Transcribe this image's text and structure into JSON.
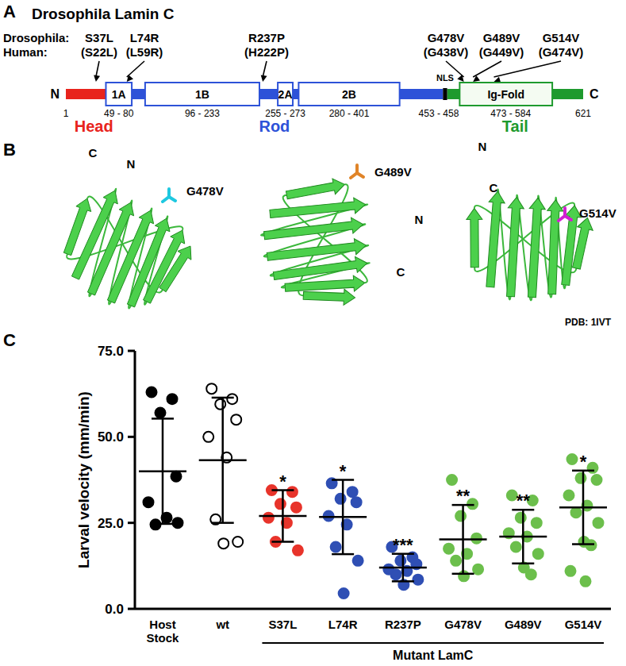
{
  "panel_a": {
    "label": "A",
    "title": "Drosophila Lamin C",
    "row_labels": [
      "Drosophila:",
      "Human:"
    ],
    "mutations": [
      {
        "drosophila": "S37L",
        "human": "(S22L)",
        "residue": 37
      },
      {
        "drosophila": "L74R",
        "human": "(L59R)",
        "residue": 74
      },
      {
        "drosophila": "R237P",
        "human": "(H222P)",
        "residue": 237
      },
      {
        "drosophila": "G478V",
        "human": "(G438V)",
        "residue": 478
      },
      {
        "drosophila": "G489V",
        "human": "(G449V)",
        "residue": 489
      },
      {
        "drosophila": "G514V",
        "human": "(G474V)",
        "residue": 514
      }
    ],
    "termini": [
      "N",
      "C"
    ],
    "start": 1,
    "end": 621,
    "boxes": [
      {
        "label": "1A",
        "range_label": "49 - 80",
        "from": 49,
        "to": 80
      },
      {
        "label": "1B",
        "range_label": "96 - 233",
        "from": 96,
        "to": 233
      },
      {
        "label": "2A",
        "range_label": "255 - 273",
        "from": 255,
        "to": 273
      },
      {
        "label": "2B",
        "range_label": "280 - 401",
        "from": 280,
        "to": 401
      }
    ],
    "nls": {
      "label": "NLS",
      "range_label": "453 - 458",
      "from": 453,
      "to": 458
    },
    "ig_fold": {
      "label": "Ig-Fold",
      "range_label": "473 - 584",
      "from": 473,
      "to": 584
    },
    "regions": [
      {
        "label": "Head",
        "color": "#e8231c"
      },
      {
        "label": "Rod",
        "color": "#2d52d8"
      },
      {
        "label": "Tail",
        "color": "#1e9a2e"
      }
    ]
  },
  "panel_b": {
    "label": "B",
    "termini": [
      "N",
      "C"
    ],
    "pdb": "PDB: 1IVT",
    "structures": [
      {
        "mutation": "G478V",
        "color": "#1ec8e0"
      },
      {
        "mutation": "G489V",
        "color": "#e08428"
      },
      {
        "mutation": "G514V",
        "color": "#d21ed2"
      }
    ]
  },
  "chart_data": {
    "type": "strip",
    "panel_label": "C",
    "y_label": "Larval velocity (mm/min)",
    "categories": [
      "Host Stock",
      "wt",
      "S37L",
      "L74R",
      "R237P",
      "G478V",
      "G489V",
      "G514V"
    ],
    "colors": [
      "#000000",
      "#ffffff",
      "#e8342b",
      "#2f4fb4",
      "#2f4fb4",
      "#6cbf4c",
      "#6cbf4c",
      "#6cbf4c"
    ],
    "values": [
      [
        63,
        61,
        57,
        38.5,
        31,
        26.5,
        24.5,
        25
      ],
      [
        64,
        61,
        59.5,
        55,
        50,
        44,
        26,
        19.5,
        19
      ],
      [
        34.5,
        34,
        30.5,
        29.5,
        26.5,
        25,
        19.5,
        17
      ],
      [
        36.5,
        34,
        32,
        31,
        27,
        24.5,
        18,
        14,
        4.5
      ],
      [
        18,
        15,
        14,
        13,
        11.5,
        11,
        10,
        8.5,
        7
      ],
      [
        37.5,
        30.5,
        27,
        20.5,
        17.5,
        16,
        14,
        11.5,
        9.5
      ],
      [
        33,
        31.5,
        26.5,
        25,
        22,
        21,
        18,
        16,
        12,
        10
      ],
      [
        43.5,
        41,
        38,
        37.5,
        33,
        30,
        28,
        25,
        19.5,
        18.5,
        11,
        8
      ]
    ],
    "means": [
      40,
      43.2,
      27,
      26.7,
      12,
      20.2,
      21,
      29.5
    ],
    "sd": [
      15.3,
      18.2,
      7.5,
      10.8,
      4,
      10,
      7.8,
      10.7
    ],
    "annotations": [
      null,
      null,
      "*",
      "*",
      "***",
      "**",
      "**",
      "*"
    ],
    "group": {
      "label": "Mutant LamC",
      "from": 2,
      "to": 7
    },
    "ylim": [
      0,
      75
    ],
    "yticks": [
      {
        "value": 0,
        "label": "0.0"
      },
      {
        "value": 25,
        "label": "25.0"
      },
      {
        "value": 50,
        "label": "50.0"
      },
      {
        "value": 75,
        "label": "75.0"
      }
    ],
    "grid": false
  }
}
